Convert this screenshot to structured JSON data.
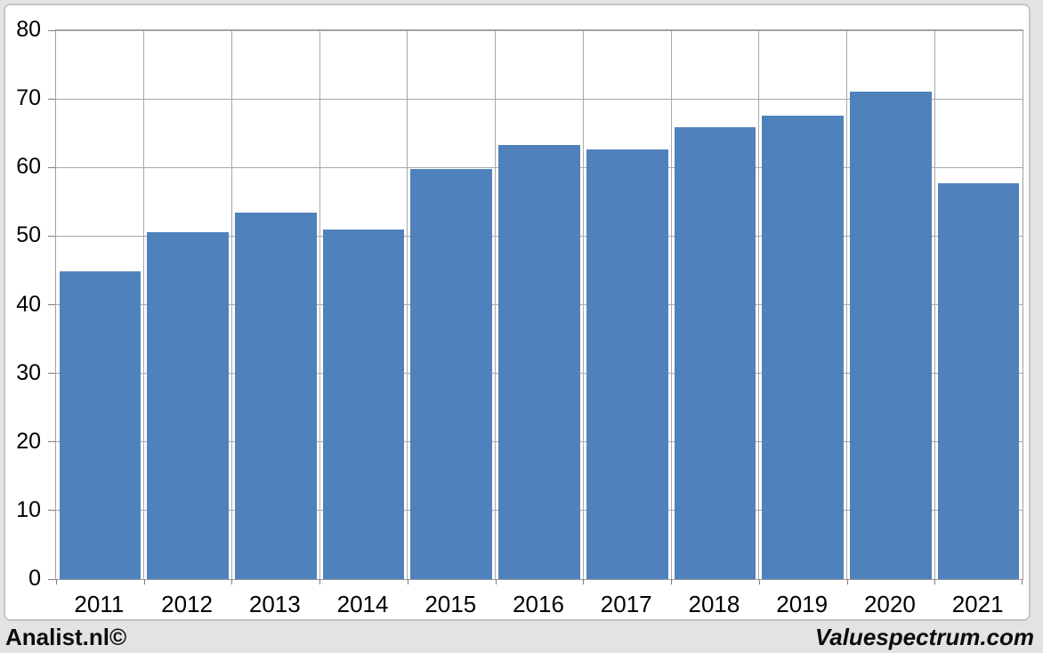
{
  "page": {
    "background_color": "#e3e3e3",
    "card_background": "#ffffff",
    "card_border_color": "#c4c4c4"
  },
  "footer": {
    "left_label": "Analist.nl©",
    "right_label": "Valuespectrum.com"
  },
  "chart_data": {
    "type": "bar",
    "title": "",
    "categories": [
      "2011",
      "2012",
      "2013",
      "2014",
      "2015",
      "2016",
      "2017",
      "2018",
      "2019",
      "2020",
      "2021"
    ],
    "values": [
      44.9,
      50.6,
      53.4,
      50.9,
      59.8,
      63.3,
      62.6,
      65.9,
      67.5,
      71.0,
      57.7
    ],
    "xlabel": "",
    "ylabel": "",
    "ylim": [
      0,
      80
    ],
    "ytick_step": 10,
    "ytick_labels": [
      "0",
      "10",
      "20",
      "30",
      "40",
      "50",
      "60",
      "70",
      "80"
    ],
    "grid": "horizontal-value-lines-and-vertical-category-boundaries",
    "legend_position": "none",
    "bar_color": "#4f81bd",
    "gridline_color": "#a8a8a8",
    "axis_line_color": "#9f9f9f",
    "axis_text_color": "#000000"
  }
}
